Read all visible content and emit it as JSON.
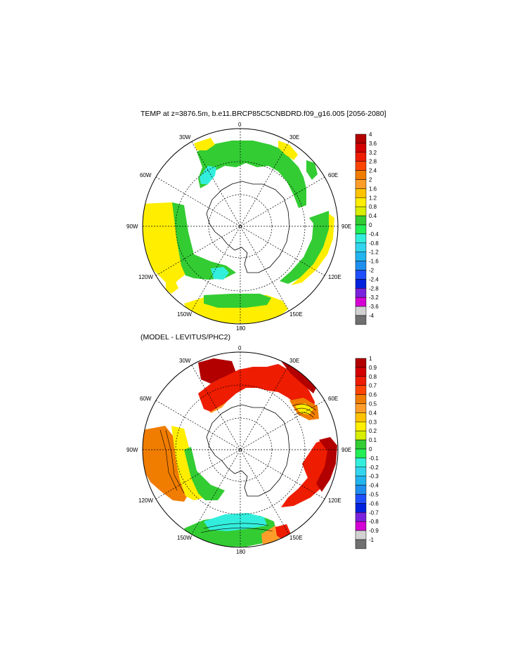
{
  "panel1": {
    "title": "TEMP at z=3876.5m, b.e11.BRCP85C5CNBDRD.f09_g16.005 [2056-2080]",
    "lon_labels": [
      "0",
      "30E",
      "60E",
      "90E",
      "120E",
      "150E",
      "180",
      "150W",
      "120W",
      "90W",
      "60W",
      "30W"
    ],
    "colorbar": {
      "labels": [
        "4",
        "3.6",
        "3.2",
        "2.8",
        "2.4",
        "2",
        "1.6",
        "1.2",
        "0.8",
        "0.4",
        "0",
        "-0.4",
        "-0.8",
        "-1.2",
        "-1.6",
        "-2",
        "-2.4",
        "-2.8",
        "-3.2",
        "-3.6",
        "-4"
      ],
      "colors": [
        "#b20000",
        "#d40000",
        "#ee1c00",
        "#ff4500",
        "#f07c00",
        "#ff9d2a",
        "#ffc200",
        "#ffee00",
        "#d8ee00",
        "#33cc33",
        "#22ee55",
        "#33eedd",
        "#33d4ee",
        "#22b4ee",
        "#1f8fef",
        "#1f4fff",
        "#0022dd",
        "#7a22dd",
        "#d400d4",
        "#d2d2d2",
        "#707070"
      ]
    }
  },
  "panel2": {
    "title": "(MODEL - LEVITUS/PHC2)",
    "lon_labels": [
      "0",
      "30E",
      "60E",
      "90E",
      "120E",
      "150E",
      "180",
      "150W",
      "120W",
      "90W",
      "60W",
      "30W"
    ],
    "colorbar": {
      "labels": [
        "1",
        "0.9",
        "0.8",
        "0.7",
        "0.6",
        "0.5",
        "0.4",
        "0.3",
        "0.2",
        "0.1",
        "0",
        "-0.1",
        "-0.2",
        "-0.3",
        "-0.4",
        "-0.5",
        "-0.6",
        "-0.7",
        "-0.8",
        "-0.9",
        "-1"
      ],
      "colors": [
        "#b20000",
        "#d40000",
        "#ee1c00",
        "#ff4500",
        "#f07c00",
        "#ff9d2a",
        "#ffc200",
        "#ffee00",
        "#d8ee00",
        "#33cc33",
        "#22ee55",
        "#33eedd",
        "#33d4ee",
        "#22b4ee",
        "#1f8fef",
        "#1f4fff",
        "#0022dd",
        "#7a22dd",
        "#d400d4",
        "#d2d2d2",
        "#707070"
      ]
    }
  }
}
